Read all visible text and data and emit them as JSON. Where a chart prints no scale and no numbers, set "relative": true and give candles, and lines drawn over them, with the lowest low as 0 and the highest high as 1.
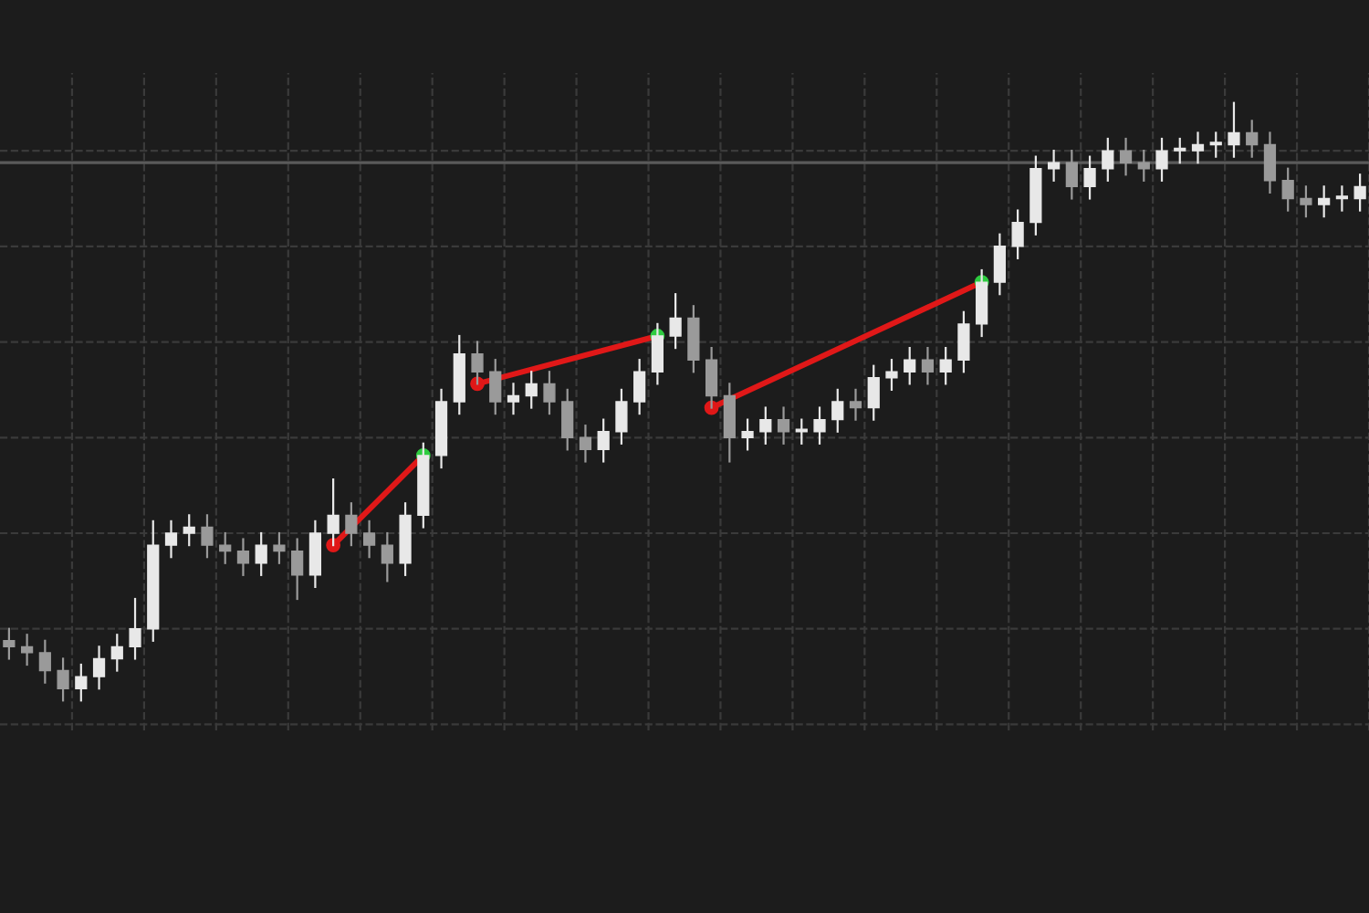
{
  "chart_data": {
    "type": "candlestick",
    "relative": true,
    "grid": true,
    "categories": [
      null,
      null,
      null,
      null,
      null,
      null,
      null,
      null,
      null,
      null,
      null,
      null,
      null,
      null,
      null,
      null,
      null,
      null,
      null,
      null,
      null,
      null,
      null,
      null,
      null,
      null,
      null,
      null,
      null,
      null,
      null,
      null,
      null,
      null,
      null,
      null,
      null,
      null,
      null,
      null,
      null,
      null,
      null,
      null,
      null,
      null,
      null,
      null,
      null,
      null,
      null,
      null,
      null,
      null,
      null,
      null,
      null,
      null,
      null,
      null,
      null,
      null,
      null,
      null,
      null,
      null,
      null,
      null,
      null,
      null,
      null,
      null,
      null,
      null,
      null,
      null
    ],
    "ohlc": [
      [
        0.1,
        0.12,
        0.07,
        0.09
      ],
      [
        0.09,
        0.11,
        0.06,
        0.08
      ],
      [
        0.08,
        0.1,
        0.03,
        0.05
      ],
      [
        0.05,
        0.07,
        0.0,
        0.02
      ],
      [
        0.02,
        0.06,
        0.0,
        0.04
      ],
      [
        0.04,
        0.09,
        0.02,
        0.07
      ],
      [
        0.07,
        0.11,
        0.05,
        0.09
      ],
      [
        0.09,
        0.17,
        0.07,
        0.12
      ],
      [
        0.12,
        0.3,
        0.1,
        0.26
      ],
      [
        0.26,
        0.3,
        0.24,
        0.28
      ],
      [
        0.28,
        0.31,
        0.26,
        0.29
      ],
      [
        0.29,
        0.31,
        0.24,
        0.26
      ],
      [
        0.26,
        0.28,
        0.23,
        0.25
      ],
      [
        0.25,
        0.27,
        0.21,
        0.23
      ],
      [
        0.23,
        0.28,
        0.21,
        0.26
      ],
      [
        0.26,
        0.28,
        0.23,
        0.25
      ],
      [
        0.25,
        0.27,
        0.17,
        0.21
      ],
      [
        0.21,
        0.3,
        0.19,
        0.28
      ],
      [
        0.28,
        0.37,
        0.26,
        0.31
      ],
      [
        0.31,
        0.33,
        0.26,
        0.28
      ],
      [
        0.28,
        0.3,
        0.24,
        0.26
      ],
      [
        0.26,
        0.28,
        0.2,
        0.23
      ],
      [
        0.23,
        0.33,
        0.21,
        0.31
      ],
      [
        0.31,
        0.43,
        0.29,
        0.41
      ],
      [
        0.41,
        0.52,
        0.39,
        0.5
      ],
      [
        0.5,
        0.61,
        0.48,
        0.58
      ],
      [
        0.58,
        0.6,
        0.53,
        0.55
      ],
      [
        0.55,
        0.57,
        0.48,
        0.5
      ],
      [
        0.5,
        0.53,
        0.48,
        0.51
      ],
      [
        0.51,
        0.55,
        0.49,
        0.53
      ],
      [
        0.53,
        0.55,
        0.48,
        0.5
      ],
      [
        0.5,
        0.52,
        0.42,
        0.44
      ],
      [
        0.44,
        0.46,
        0.4,
        0.42
      ],
      [
        0.42,
        0.47,
        0.4,
        0.45
      ],
      [
        0.45,
        0.52,
        0.43,
        0.5
      ],
      [
        0.5,
        0.57,
        0.48,
        0.55
      ],
      [
        0.55,
        0.63,
        0.53,
        0.61
      ],
      [
        0.61,
        0.68,
        0.59,
        0.64
      ],
      [
        0.64,
        0.66,
        0.55,
        0.57
      ],
      [
        0.57,
        0.59,
        0.49,
        0.51
      ],
      [
        0.51,
        0.53,
        0.4,
        0.44
      ],
      [
        0.44,
        0.47,
        0.42,
        0.45
      ],
      [
        0.45,
        0.49,
        0.43,
        0.47
      ],
      [
        0.47,
        0.49,
        0.43,
        0.45
      ],
      [
        0.45,
        0.47,
        0.43,
        0.45
      ],
      [
        0.45,
        0.49,
        0.43,
        0.47
      ],
      [
        0.47,
        0.52,
        0.45,
        0.5
      ],
      [
        0.5,
        0.52,
        0.47,
        0.49
      ],
      [
        0.49,
        0.56,
        0.47,
        0.54
      ],
      [
        0.54,
        0.57,
        0.52,
        0.55
      ],
      [
        0.55,
        0.59,
        0.53,
        0.57
      ],
      [
        0.57,
        0.59,
        0.53,
        0.55
      ],
      [
        0.55,
        0.59,
        0.53,
        0.57
      ],
      [
        0.57,
        0.65,
        0.55,
        0.63
      ],
      [
        0.63,
        0.72,
        0.61,
        0.7
      ],
      [
        0.7,
        0.78,
        0.68,
        0.76
      ],
      [
        0.76,
        0.82,
        0.74,
        0.8
      ],
      [
        0.8,
        0.91,
        0.78,
        0.89
      ],
      [
        0.89,
        0.92,
        0.87,
        0.9
      ],
      [
        0.9,
        0.92,
        0.84,
        0.86
      ],
      [
        0.86,
        0.91,
        0.84,
        0.89
      ],
      [
        0.89,
        0.94,
        0.87,
        0.92
      ],
      [
        0.92,
        0.94,
        0.88,
        0.9
      ],
      [
        0.9,
        0.92,
        0.87,
        0.89
      ],
      [
        0.89,
        0.94,
        0.87,
        0.92
      ],
      [
        0.92,
        0.94,
        0.9,
        0.92
      ],
      [
        0.92,
        0.95,
        0.9,
        0.93
      ],
      [
        0.93,
        0.95,
        0.91,
        0.93
      ],
      [
        0.93,
        1.0,
        0.91,
        0.95
      ],
      [
        0.95,
        0.97,
        0.91,
        0.93
      ],
      [
        0.93,
        0.95,
        0.85,
        0.87
      ],
      [
        0.87,
        0.89,
        0.82,
        0.84
      ],
      [
        0.84,
        0.86,
        0.81,
        0.83
      ],
      [
        0.83,
        0.86,
        0.81,
        0.84
      ],
      [
        0.84,
        0.86,
        0.82,
        0.84
      ],
      [
        0.84,
        0.88,
        0.82,
        0.86
      ]
    ],
    "ref_lines": [
      {
        "axis": "y",
        "value": 0.9,
        "color": "#5a5a5a"
      }
    ]
  }
}
